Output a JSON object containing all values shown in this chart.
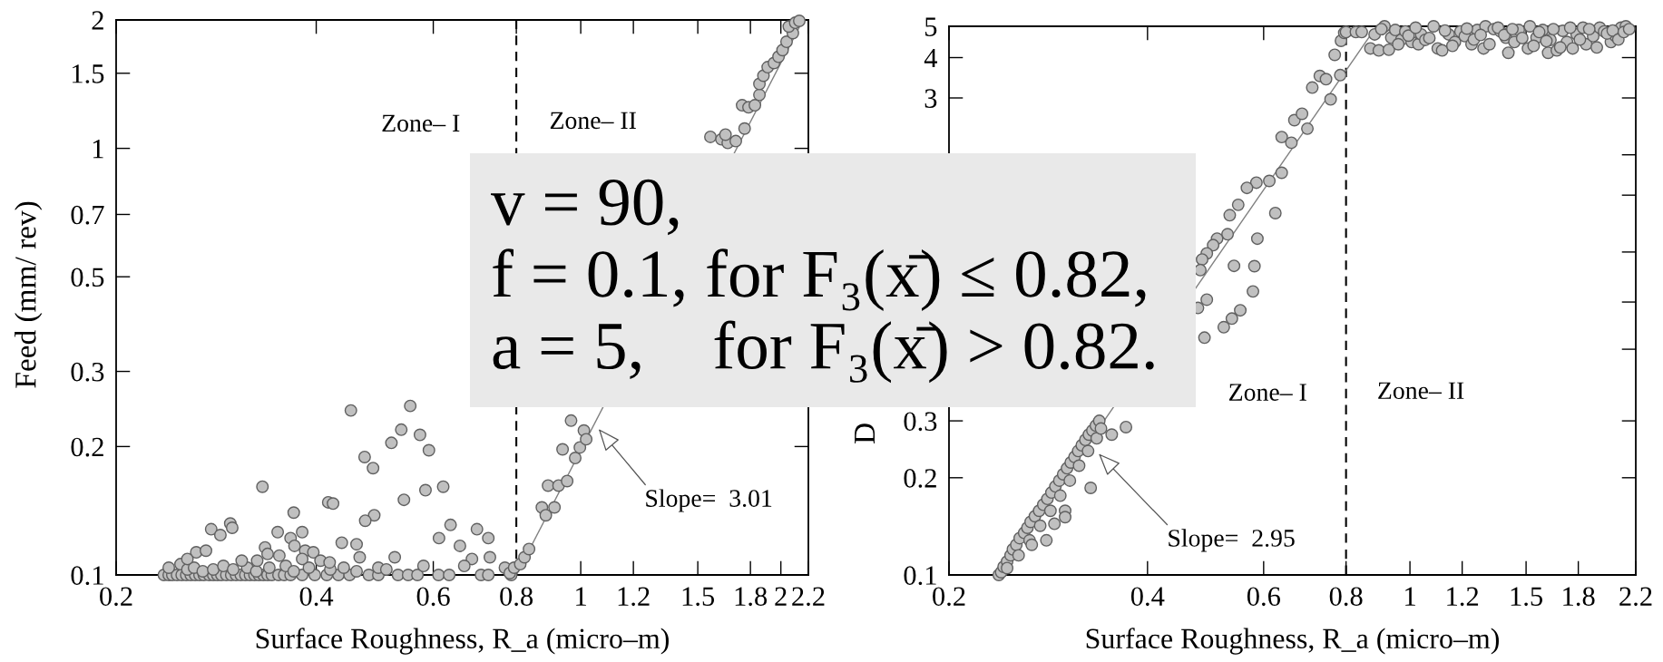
{
  "chart_data": [
    {
      "type": "scatter",
      "xlabel": "Surface Roughness, R_a (micro–m)",
      "ylabel": "Feed (mm/ rev)",
      "log": "xy",
      "xlim": [
        0.2,
        2.2
      ],
      "ylim": [
        0.1,
        2
      ],
      "xticks": [
        0.2,
        0.4,
        0.6,
        0.8,
        1,
        1.2,
        1.5,
        1.8,
        2,
        2.2
      ],
      "yticks": [
        0.1,
        0.2,
        0.3,
        0.5,
        0.7,
        1,
        1.5,
        2
      ],
      "series": [
        {
          "color": "#c0c0c0",
          "marker": "circle",
          "x": [
            0.236,
            0.24,
            0.243,
            0.247,
            0.251,
            0.255,
            0.259,
            0.263,
            0.267,
            0.271,
            0.276,
            0.28,
            0.284,
            0.288,
            0.293,
            0.298,
            0.303,
            0.308,
            0.313,
            0.318,
            0.323,
            0.328,
            0.333,
            0.338,
            0.343,
            0.351,
            0.358,
            0.366,
            0.381,
            0.398,
            0.415,
            0.432,
            0.449,
            0.48,
            0.496,
            0.531,
            0.55,
            0.568,
            0.611,
            0.634,
            0.708,
            0.726,
            0.786,
            0.24,
            0.25,
            0.256,
            0.262,
            0.27,
            0.28,
            0.29,
            0.3,
            0.315,
            0.325,
            0.34,
            0.36,
            0.37,
            0.39,
            0.42,
            0.44,
            0.46,
            0.451,
            0.554,
            0.537,
            0.519,
            0.573,
            0.591,
            0.473,
            0.487,
            0.332,
            0.584,
            0.621,
            0.417,
            0.424,
            0.542,
            0.37,
            0.489,
            0.474,
            0.278,
            0.287,
            0.297,
            0.299,
            0.35,
            0.381,
            0.366,
            0.371,
            0.637,
            0.612,
            0.658,
            0.698,
            0.726,
            0.73,
            0.686,
            0.668,
            0.437,
            0.46,
            0.465,
            0.525,
            0.264,
            0.273,
            0.256,
            0.335,
            0.338,
            0.352,
            0.326,
            0.385,
            0.396,
            0.381,
            0.406,
            0.419,
            0.309,
            0.769,
            0.58,
            0.496,
            0.51,
            0.782,
            0.794,
            0.811,
            0.823,
            0.836,
            0.874,
            0.886,
            0.913,
            0.893,
            0.926,
            0.954,
            0.939,
            0.981,
            0.997,
            1.011,
            1.019,
            0.967,
            1.567,
            1.628,
            1.664,
            1.711,
            1.651,
            1.764,
            1.749,
            1.788,
            1.828,
            1.857,
            1.857,
            1.883,
            1.911,
            1.953,
            1.984,
            2.012,
            2.04,
            2.085,
            2.056,
            2.102,
            2.132
          ],
          "values": [
            0.1,
            0.1,
            0.1,
            0.1,
            0.1,
            0.1,
            0.1,
            0.1,
            0.1,
            0.1,
            0.1,
            0.1,
            0.1,
            0.1,
            0.1,
            0.1,
            0.1,
            0.1,
            0.1,
            0.1,
            0.1,
            0.1,
            0.1,
            0.1,
            0.1,
            0.1,
            0.1,
            0.1,
            0.1,
            0.1,
            0.1,
            0.1,
            0.1,
            0.1,
            0.1,
            0.1,
            0.1,
            0.1,
            0.1,
            0.1,
            0.1,
            0.1,
            0.1,
            0.104,
            0.106,
            0.103,
            0.104,
            0.102,
            0.103,
            0.105,
            0.103,
            0.104,
            0.102,
            0.104,
            0.105,
            0.102,
            0.104,
            0.103,
            0.104,
            0.102,
            0.243,
            0.249,
            0.219,
            0.204,
            0.213,
            0.196,
            0.189,
            0.178,
            0.161,
            0.158,
            0.161,
            0.148,
            0.147,
            0.15,
            0.14,
            0.138,
            0.134,
            0.128,
            0.124,
            0.132,
            0.129,
            0.126,
            0.126,
            0.122,
            0.117,
            0.131,
            0.122,
            0.117,
            0.128,
            0.122,
            0.11,
            0.109,
            0.105,
            0.119,
            0.118,
            0.11,
            0.11,
            0.113,
            0.114,
            0.109,
            0.116,
            0.112,
            0.111,
            0.108,
            0.114,
            0.113,
            0.109,
            0.108,
            0.107,
            0.108,
            0.104,
            0.105,
            0.104,
            0.103,
            0.101,
            0.104,
            0.106,
            0.11,
            0.115,
            0.144,
            0.138,
            0.144,
            0.162,
            0.162,
            0.166,
            0.197,
            0.188,
            0.199,
            0.218,
            0.208,
            0.23,
            1.064,
            1.05,
            1.03,
            1.04,
            1.077,
            1.113,
            1.262,
            1.248,
            1.262,
            1.335,
            1.416,
            1.48,
            1.55,
            1.585,
            1.64,
            1.7,
            1.778,
            1.863,
            1.93,
            1.97,
            1.99
          ]
        },
        {
          "type": "line",
          "color": "#808080",
          "x": [
            0.8,
            2.16
          ],
          "values": [
            0.1,
            2
          ]
        }
      ],
      "ref_lines": [
        {
          "axis": "x",
          "value": 0.8,
          "color": "#000000",
          "line_style": "dashed"
        }
      ],
      "annotations": [
        "Zone– I",
        "Zone– II",
        "Slope=  3.01",
        "v = 90,\nf = 0.1, for F₃(x̄) ≤ 0.82,\na = 5,    for F₃(x̄) > 0.82."
      ]
    },
    {
      "type": "scatter",
      "xlabel": "Surface Roughness, R_a (micro–m)",
      "ylabel": "D",
      "log": "xy",
      "xlim": [
        0.2,
        2.2
      ],
      "ylim": [
        0.1,
        5
      ],
      "xticks": [
        0.2,
        0.4,
        0.6,
        0.8,
        1,
        1.2,
        1.5,
        1.8,
        2.2
      ],
      "yticks": [
        0.1,
        0.2,
        0.3,
        {
          "value": 0.5,
          "label": null
        },
        {
          "value": 0.7,
          "label": null
        },
        {
          "value": 1,
          "label": null
        },
        {
          "value": 1.5,
          "label": null
        },
        {
          "value": 2,
          "label": null
        },
        3,
        4,
        5
      ],
      "series": [
        {
          "color": "#c0c0c0",
          "marker": "circle",
          "x": [
            0.238,
            0.24,
            0.242,
            0.245,
            0.248,
            0.25,
            0.253,
            0.256,
            0.26,
            0.263,
            0.266,
            0.27,
            0.274,
            0.278,
            0.282,
            0.286,
            0.29,
            0.294,
            0.298,
            0.302,
            0.306,
            0.31,
            0.314,
            0.318,
            0.322,
            0.326,
            0.33,
            0.334,
            0.338,
            0.245,
            0.255,
            0.265,
            0.275,
            0.285,
            0.295,
            0.305,
            0.315,
            0.325,
            0.335,
            0.371,
            0.353,
            0.34,
            0.328,
            0.3,
            0.289,
            0.3,
            0.281,
            0.267,
            0.585,
            0.612,
            0.639,
            0.625,
            0.587,
            0.581,
            0.578,
            0.639,
            0.661,
            0.668,
            0.686,
            0.699,
            0.711,
            0.73,
            0.746,
            0.758,
            0.769,
            0.784,
            0.786,
            0.795,
            0.8,
            0.828,
            0.845,
            0.566,
            0.549,
            0.533,
            0.529,
            0.51,
            0.503,
            0.492,
            0.484,
            0.481,
            0.541,
            0.553,
            0.537,
            0.522,
            0.488,
            0.492,
            0.477,
            0.884,
            0.871,
            0.897,
            0.915,
            0.929,
            0.937,
            0.95,
            0.97,
            0.984,
            1.006,
            1.03,
            1.04,
            1.055,
            1.086,
            1.102,
            1.119,
            1.145,
            1.17,
            1.193,
            1.211,
            1.24,
            1.265,
            1.293,
            1.302,
            1.34,
            1.372,
            1.398,
            1.41,
            1.44,
            1.462,
            1.51,
            1.52,
            1.556,
            1.59,
            1.62,
            1.633,
            1.67,
            1.705,
            1.73,
            1.765,
            1.79,
            1.83,
            1.85,
            1.896,
            1.94,
            1.97,
            2.017,
            2.05,
            2.09,
            2.125,
            0.905,
            0.96,
            0.995,
            1.02,
            1.07,
            1.13,
            1.16,
            1.22,
            1.25,
            1.28,
            1.32,
            1.36,
            1.39,
            1.43,
            1.48,
            1.54,
            1.57,
            1.61,
            1.65,
            1.69,
            1.75,
            1.81,
            1.87,
            1.92,
            1.99,
            2.03,
            2.07,
            2.11,
            2.15
          ],
          "values": [
            0.1,
            0.102,
            0.106,
            0.11,
            0.115,
            0.12,
            0.124,
            0.13,
            0.135,
            0.14,
            0.146,
            0.152,
            0.158,
            0.165,
            0.172,
            0.18,
            0.188,
            0.196,
            0.205,
            0.214,
            0.223,
            0.232,
            0.242,
            0.252,
            0.262,
            0.272,
            0.28,
            0.29,
            0.3,
            0.105,
            0.115,
            0.128,
            0.142,
            0.158,
            0.176,
            0.196,
            0.218,
            0.242,
            0.265,
            0.287,
            0.272,
            0.284,
            0.186,
            0.158,
            0.144,
            0.151,
            0.128,
            0.124,
            1.64,
            1.66,
            1.76,
            1.32,
            1.1,
            0.904,
            0.755,
            2.27,
            2.18,
            2.56,
            2.68,
            2.41,
            3.23,
            3.51,
            3.43,
            2.97,
            4.08,
            3.53,
            4.51,
            4.77,
            4.8,
            4.8,
            4.8,
            1.58,
            1.4,
            1.3,
            1.135,
            1.1,
            1.05,
            0.99,
            0.948,
            0.879,
            0.906,
            0.66,
            0.622,
            0.585,
            0.543,
            0.712,
            0.671,
            4.72,
            4.27,
            4.21,
            5,
            4.23,
            4.61,
            4.87,
            4.54,
            4.82,
            4.47,
            4.4,
            4.72,
            4.54,
            5,
            4.27,
            4.21,
            4.72,
            4.47,
            4.82,
            4.66,
            4.4,
            4.87,
            4.27,
            5,
            4.9,
            4.82,
            4.61,
            4.14,
            4.47,
            4.87,
            4.27,
            5,
            4.61,
            4.87,
            4.14,
            4.54,
            4.21,
            4.84,
            4.47,
            4.27,
            4.72,
            4.95,
            4.4,
            4.66,
            4.95,
            4.82,
            4.47,
            4.66,
            4.95,
            5,
            4.9,
            4.4,
            4.68,
            4.95,
            4.6,
            4.85,
            4.35,
            4.92,
            4.55,
            4.7,
            4.4,
            4.95,
            4.7,
            4.9,
            4.6,
            4.35,
            4.8,
            4.5,
            4.9,
            4.3,
            4.95,
            4.55,
            4.9,
            4.3,
            4.75,
            4.85,
            4.55,
            4.8,
            4.9
          ]
        },
        {
          "type": "line",
          "color": "#808080",
          "x": [
            0.237,
            0.89
          ],
          "values": [
            0.1,
            5
          ]
        }
      ],
      "ref_lines": [
        {
          "axis": "x",
          "value": 0.8,
          "color": "#000000",
          "line_style": "dashed"
        }
      ],
      "annotations": [
        "Zone– I",
        "Zone– II",
        "Slope=  2.95"
      ]
    }
  ]
}
